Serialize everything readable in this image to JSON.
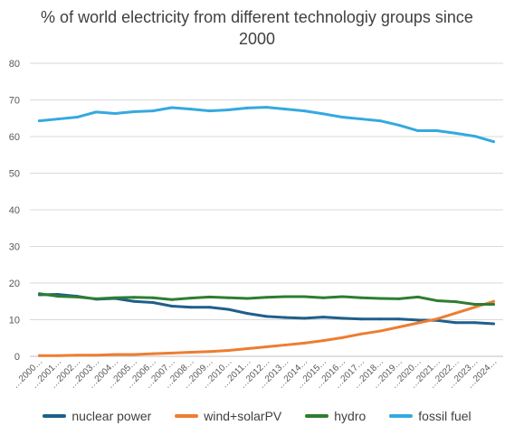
{
  "chart_data": {
    "type": "line",
    "title_lines": [
      "% of world electricity from different technologiy groups since",
      "2000"
    ],
    "xlabel": "",
    "ylabel": "",
    "ylim": [
      0,
      80
    ],
    "yticks": [
      0,
      10,
      20,
      30,
      40,
      50,
      60,
      70,
      80
    ],
    "grid": true,
    "legend_position": "bottom",
    "categories": [
      "2000",
      "2001",
      "2002",
      "2003",
      "2004",
      "2005",
      "2006",
      "2007",
      "2008",
      "2009",
      "2010",
      "2011",
      "2012",
      "2013",
      "2014",
      "2015",
      "2016",
      "2017",
      "2018",
      "2019",
      "2020",
      "2021",
      "2022",
      "2023",
      "2024"
    ],
    "category_labels": [
      "…2000…",
      "…2001…",
      "…2002…",
      "…2003…",
      "…2004…",
      "…2005…",
      "…2006…",
      "…2007…",
      "…2008…",
      "…2009…",
      "…2010…",
      "…2011…",
      "…2012…",
      "…2013…",
      "…2014…",
      "…2015…",
      "…2016…",
      "…2017…",
      "…2018…",
      "…2019…",
      "…2020…",
      "…2021…",
      "…2022…",
      "…2023…",
      "…2024…"
    ],
    "series": [
      {
        "name": "nuclear power",
        "color": "#1f5f8b",
        "values": [
          16.8,
          16.9,
          16.4,
          15.6,
          15.8,
          15.0,
          14.7,
          13.7,
          13.4,
          13.4,
          12.8,
          11.7,
          10.9,
          10.6,
          10.4,
          10.7,
          10.4,
          10.2,
          10.2,
          10.2,
          9.9,
          9.8,
          9.2,
          9.2,
          8.9
        ]
      },
      {
        "name": "wind+solarPV",
        "color": "#ed7d31",
        "values": [
          0.2,
          0.2,
          0.3,
          0.3,
          0.5,
          0.5,
          0.7,
          0.9,
          1.1,
          1.3,
          1.6,
          2.1,
          2.6,
          3.1,
          3.6,
          4.3,
          5.1,
          6.1,
          6.9,
          8.0,
          9.1,
          10.2,
          11.8,
          13.4,
          15.0
        ]
      },
      {
        "name": "hydro",
        "color": "#2e7d32",
        "values": [
          17.1,
          16.4,
          16.2,
          15.7,
          16.0,
          16.1,
          16.0,
          15.5,
          15.9,
          16.2,
          16.0,
          15.8,
          16.1,
          16.3,
          16.3,
          16.0,
          16.3,
          16.0,
          15.8,
          15.7,
          16.2,
          15.2,
          14.9,
          14.2,
          14.2
        ]
      },
      {
        "name": "fossil fuel",
        "color": "#35a9e0",
        "values": [
          64.3,
          64.8,
          65.3,
          66.7,
          66.3,
          66.8,
          67.0,
          67.9,
          67.5,
          67.0,
          67.3,
          67.8,
          68.0,
          67.5,
          67.0,
          66.2,
          65.3,
          64.8,
          64.3,
          63.1,
          61.6,
          61.6,
          60.9,
          60.1,
          58.6
        ]
      }
    ]
  }
}
